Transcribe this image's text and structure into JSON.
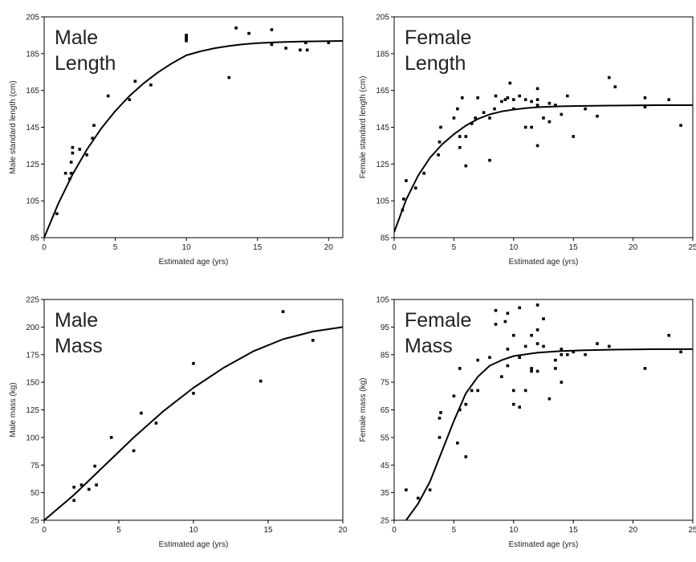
{
  "chart_data": [
    {
      "type": "scatter",
      "panel_label": [
        "Male",
        "Length"
      ],
      "xlabel": "Estimated age (yrs)",
      "ylabel": "Male standard length (cm)",
      "xlim": [
        0,
        21
      ],
      "ylim": [
        85,
        205
      ],
      "xticks": [
        0,
        5,
        10,
        15,
        20
      ],
      "yticks": [
        85,
        105,
        125,
        145,
        165,
        185,
        205
      ],
      "grid": false,
      "points": [
        [
          0.9,
          98
        ],
        [
          1.5,
          120
        ],
        [
          1.8,
          117
        ],
        [
          1.9,
          120
        ],
        [
          1.9,
          126
        ],
        [
          2,
          131
        ],
        [
          2,
          134
        ],
        [
          2.5,
          133
        ],
        [
          3,
          130
        ],
        [
          3.4,
          139
        ],
        [
          3.5,
          146
        ],
        [
          4.5,
          162
        ],
        [
          6,
          160
        ],
        [
          6.4,
          170
        ],
        [
          7.5,
          168
        ],
        [
          10,
          192
        ],
        [
          10,
          193
        ],
        [
          10,
          194
        ],
        [
          10,
          195
        ],
        [
          13,
          172
        ],
        [
          13.5,
          199
        ],
        [
          14.4,
          196
        ],
        [
          16,
          198
        ],
        [
          16,
          190
        ],
        [
          17,
          188
        ],
        [
          18,
          187
        ],
        [
          18.4,
          191
        ],
        [
          18.5,
          187
        ],
        [
          20,
          191
        ]
      ],
      "fit": [
        [
          0,
          85
        ],
        [
          1,
          103.6
        ],
        [
          2,
          119.4
        ],
        [
          3,
          132.8
        ],
        [
          4,
          144.2
        ],
        [
          5,
          153.8
        ],
        [
          6,
          162
        ],
        [
          7,
          168.9
        ],
        [
          8,
          174.8
        ],
        [
          9,
          179.8
        ],
        [
          10,
          184.1
        ],
        [
          11,
          186.3
        ],
        [
          12,
          188
        ],
        [
          13,
          189.2
        ],
        [
          14,
          190.1
        ],
        [
          15,
          190.7
        ],
        [
          16,
          191.1
        ],
        [
          17,
          191.4
        ],
        [
          18,
          191.6
        ],
        [
          19,
          191.7
        ],
        [
          20,
          191.8
        ],
        [
          21,
          191.9
        ]
      ]
    },
    {
      "type": "scatter",
      "panel_label": [
        "Female",
        "Length"
      ],
      "xlabel": "Estimated age (yrs)",
      "ylabel": "Female standard length (cm)",
      "xlim": [
        0,
        25
      ],
      "ylim": [
        85,
        205
      ],
      "xticks": [
        0,
        5,
        10,
        15,
        20,
        25
      ],
      "yticks": [
        85,
        105,
        125,
        145,
        165,
        185,
        205
      ],
      "grid": false,
      "points": [
        [
          0.7,
          100
        ],
        [
          0.8,
          106
        ],
        [
          1,
          116
        ],
        [
          1.8,
          112
        ],
        [
          2.5,
          120
        ],
        [
          3.7,
          130
        ],
        [
          3.8,
          137
        ],
        [
          3.9,
          145
        ],
        [
          5,
          150
        ],
        [
          5.3,
          155
        ],
        [
          5.5,
          134
        ],
        [
          5.5,
          140
        ],
        [
          5.7,
          161
        ],
        [
          6,
          124
        ],
        [
          6,
          140
        ],
        [
          6.5,
          147
        ],
        [
          6.8,
          150
        ],
        [
          7,
          161
        ],
        [
          7.5,
          153
        ],
        [
          8,
          127
        ],
        [
          8,
          150
        ],
        [
          8.4,
          155
        ],
        [
          8.5,
          162
        ],
        [
          9,
          159
        ],
        [
          9.3,
          160
        ],
        [
          9.5,
          161
        ],
        [
          9.7,
          169
        ],
        [
          10,
          155
        ],
        [
          10,
          160
        ],
        [
          10.5,
          162
        ],
        [
          11,
          160
        ],
        [
          11,
          145
        ],
        [
          11.5,
          159
        ],
        [
          11.5,
          145
        ],
        [
          12,
          135
        ],
        [
          12,
          157
        ],
        [
          12,
          160
        ],
        [
          12,
          166
        ],
        [
          12.5,
          150
        ],
        [
          13,
          148
        ],
        [
          13,
          158
        ],
        [
          13.5,
          157
        ],
        [
          14,
          152
        ],
        [
          14.5,
          162
        ],
        [
          15,
          140
        ],
        [
          16,
          155
        ],
        [
          17,
          151
        ],
        [
          18,
          172
        ],
        [
          18.5,
          167
        ],
        [
          21,
          161
        ],
        [
          21,
          156
        ],
        [
          23,
          160
        ],
        [
          24,
          146
        ]
      ],
      "fit": [
        [
          0,
          88
        ],
        [
          1,
          105.6
        ],
        [
          2,
          118.7
        ],
        [
          3,
          128.4
        ],
        [
          4,
          135.6
        ],
        [
          5,
          141.2
        ],
        [
          6,
          145.9
        ],
        [
          7,
          149.5
        ],
        [
          8,
          152
        ],
        [
          9,
          153.6
        ],
        [
          10,
          154.6
        ],
        [
          11,
          155.4
        ],
        [
          12,
          155.9
        ],
        [
          14,
          156.4
        ],
        [
          16,
          156.6
        ],
        [
          18,
          156.8
        ],
        [
          20,
          156.9
        ],
        [
          22,
          157
        ],
        [
          25,
          157
        ]
      ]
    },
    {
      "type": "scatter",
      "panel_label": [
        "Male",
        "Mass"
      ],
      "xlabel": "Estimated age (yrs)",
      "ylabel": "Male mass (kg)",
      "xlim": [
        0,
        20
      ],
      "ylim": [
        25,
        225
      ],
      "xticks": [
        0,
        5,
        10,
        15,
        20
      ],
      "yticks": [
        25,
        50,
        75,
        100,
        125,
        150,
        175,
        200,
        225
      ],
      "grid": false,
      "points": [
        [
          2,
          43
        ],
        [
          2,
          55
        ],
        [
          2.5,
          57
        ],
        [
          3,
          53
        ],
        [
          3.4,
          74
        ],
        [
          3.5,
          57
        ],
        [
          4.5,
          100
        ],
        [
          6,
          88
        ],
        [
          6.5,
          122
        ],
        [
          7.5,
          113
        ],
        [
          10,
          140
        ],
        [
          10,
          167
        ],
        [
          14.5,
          151
        ],
        [
          16,
          214
        ],
        [
          18,
          188
        ]
      ],
      "fit": [
        [
          0,
          25
        ],
        [
          2,
          48
        ],
        [
          4,
          74
        ],
        [
          6,
          100
        ],
        [
          8,
          124
        ],
        [
          10,
          145
        ],
        [
          12,
          163
        ],
        [
          14,
          178
        ],
        [
          16,
          189
        ],
        [
          18,
          196
        ],
        [
          20,
          200
        ]
      ]
    },
    {
      "type": "scatter",
      "panel_label": [
        "Female",
        "Mass"
      ],
      "xlabel": "Estimated age (yrs)",
      "ylabel": "Female mass (kg)",
      "xlim": [
        0,
        25
      ],
      "ylim": [
        25,
        105
      ],
      "xticks": [
        0,
        5,
        10,
        15,
        20,
        25
      ],
      "yticks": [
        25,
        35,
        45,
        55,
        65,
        75,
        85,
        95,
        105
      ],
      "grid": false,
      "points": [
        [
          1,
          36
        ],
        [
          2,
          33
        ],
        [
          3,
          36
        ],
        [
          3.8,
          55
        ],
        [
          3.8,
          62
        ],
        [
          3.9,
          64
        ],
        [
          5,
          70
        ],
        [
          5.3,
          53
        ],
        [
          5.5,
          80
        ],
        [
          5.5,
          65
        ],
        [
          6,
          48
        ],
        [
          6,
          67
        ],
        [
          6.5,
          72
        ],
        [
          7,
          72
        ],
        [
          7,
          83
        ],
        [
          8,
          84
        ],
        [
          8.5,
          101
        ],
        [
          8.5,
          96
        ],
        [
          9,
          77
        ],
        [
          9.3,
          97
        ],
        [
          9.5,
          87
        ],
        [
          9.5,
          81
        ],
        [
          9.5,
          100
        ],
        [
          10,
          92
        ],
        [
          10,
          67
        ],
        [
          10,
          72
        ],
        [
          10.5,
          102
        ],
        [
          10.5,
          84
        ],
        [
          10.5,
          66
        ],
        [
          11,
          72
        ],
        [
          11,
          88
        ],
        [
          11.5,
          79
        ],
        [
          11.5,
          92
        ],
        [
          11.5,
          80
        ],
        [
          12,
          79
        ],
        [
          12,
          94
        ],
        [
          12,
          103
        ],
        [
          12,
          89
        ],
        [
          12.5,
          98
        ],
        [
          12.5,
          88
        ],
        [
          13,
          69
        ],
        [
          13.5,
          80
        ],
        [
          13.5,
          83
        ],
        [
          14,
          75
        ],
        [
          14,
          85
        ],
        [
          14,
          87
        ],
        [
          14.5,
          85
        ],
        [
          15,
          86
        ],
        [
          16,
          85
        ],
        [
          17,
          89
        ],
        [
          18,
          88
        ],
        [
          21,
          80
        ],
        [
          23,
          92
        ],
        [
          24,
          86
        ]
      ],
      "fit": [
        [
          1,
          25
        ],
        [
          2,
          31
        ],
        [
          3,
          39
        ],
        [
          4,
          50
        ],
        [
          5,
          61
        ],
        [
          6,
          71
        ],
        [
          7,
          77
        ],
        [
          8,
          81
        ],
        [
          9,
          83
        ],
        [
          10,
          84.5
        ],
        [
          12,
          85.7
        ],
        [
          14,
          86.3
        ],
        [
          16,
          86.6
        ],
        [
          18,
          86.8
        ],
        [
          20,
          86.9
        ],
        [
          22,
          87
        ],
        [
          25,
          87
        ]
      ]
    }
  ]
}
